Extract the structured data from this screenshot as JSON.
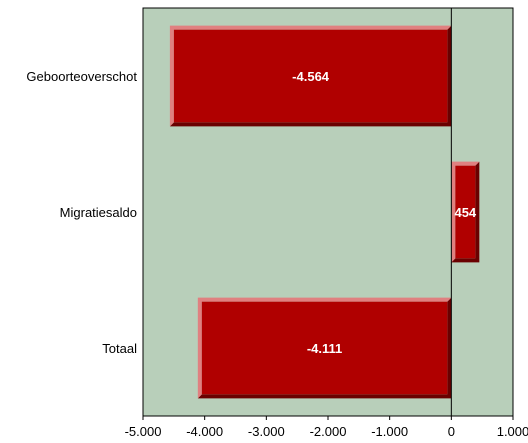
{
  "chart_data": {
    "type": "bar",
    "orientation": "horizontal",
    "categories": [
      "Geboorteoverschot",
      "Migratiesaldo",
      "Totaal"
    ],
    "values": [
      -4564,
      454,
      -4111
    ],
    "value_labels": [
      "-4.564",
      "454",
      "-4.111"
    ],
    "xlim": [
      -5000,
      1000
    ],
    "x_ticks": [
      -5000,
      -4000,
      -3000,
      -2000,
      -1000,
      0,
      1000
    ],
    "x_tick_labels": [
      "-5.000",
      "-4.000",
      "-3.000",
      "-2.000",
      "-1.000",
      "0",
      "1.000"
    ],
    "grid": false,
    "legend": "none",
    "colors": {
      "plot_background": "#b8cfba",
      "bar_face": "#b00000",
      "bar_highlight": "#e08080",
      "bar_shadow": "#6a0000",
      "axis": "#000000"
    }
  }
}
